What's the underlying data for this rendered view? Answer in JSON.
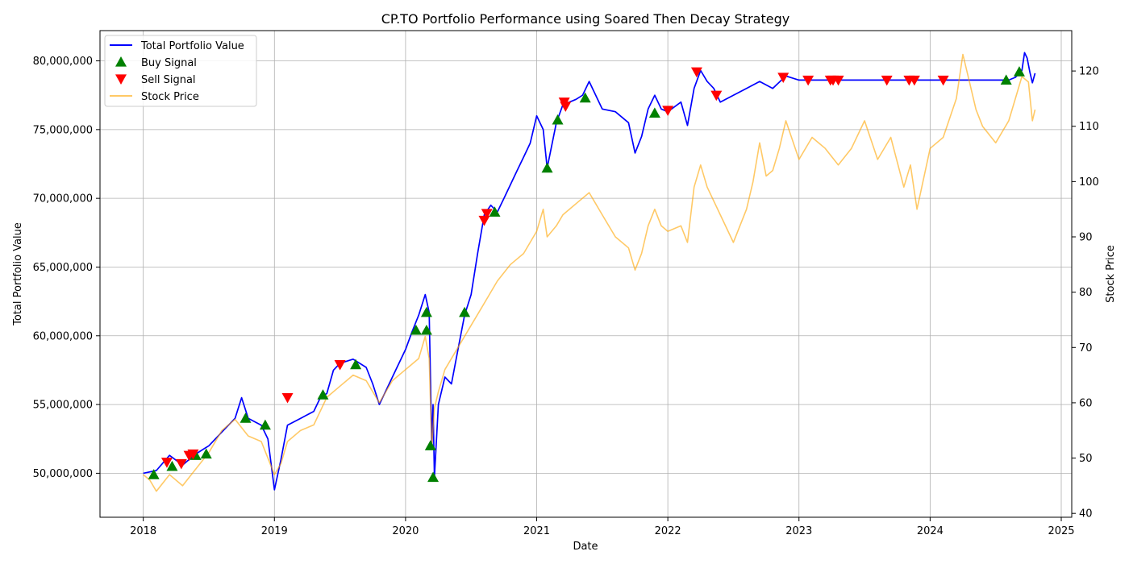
{
  "chart_data": {
    "type": "line",
    "title": "CP.TO Portfolio Performance using Soared Then Decay Strategy",
    "xlabel": "Date",
    "ylabel": "Total Portfolio Value",
    "ylabel_right": "Stock Price",
    "xlim": [
      2017.67,
      2025.08
    ],
    "ylim": [
      46800000,
      82200000
    ],
    "ylim_right": [
      39.3,
      127.3
    ],
    "x_ticks": [
      2018,
      2019,
      2020,
      2021,
      2022,
      2023,
      2024,
      2025
    ],
    "x_tick_labels": [
      "2018",
      "2019",
      "2020",
      "2021",
      "2022",
      "2023",
      "2024",
      "2025"
    ],
    "y_ticks": [
      50000000,
      55000000,
      60000000,
      65000000,
      70000000,
      75000000,
      80000000
    ],
    "y_tick_labels": [
      "50,000,000",
      "55,000,000",
      "60,000,000",
      "65,000,000",
      "70,000,000",
      "75,000,000",
      "80,000,000"
    ],
    "y_ticks_right": [
      40,
      50,
      60,
      70,
      80,
      90,
      100,
      110,
      120
    ],
    "y_tick_labels_right": [
      "40",
      "50",
      "60",
      "70",
      "80",
      "90",
      "100",
      "110",
      "120"
    ],
    "grid": true,
    "legend_position": "top-left",
    "series": [
      {
        "name": "Total Portfolio Value",
        "axis": "left",
        "color": "#0000ff",
        "points": [
          [
            2018.0,
            50000000
          ],
          [
            2018.1,
            50200000
          ],
          [
            2018.2,
            51300000
          ],
          [
            2018.3,
            50600000
          ],
          [
            2018.4,
            51400000
          ],
          [
            2018.5,
            52000000
          ],
          [
            2018.6,
            53000000
          ],
          [
            2018.7,
            54000000
          ],
          [
            2018.75,
            55500000
          ],
          [
            2018.8,
            54000000
          ],
          [
            2018.9,
            53500000
          ],
          [
            2018.95,
            52500000
          ],
          [
            2019.0,
            48800000
          ],
          [
            2019.05,
            51000000
          ],
          [
            2019.1,
            53500000
          ],
          [
            2019.2,
            54000000
          ],
          [
            2019.3,
            54500000
          ],
          [
            2019.35,
            55500000
          ],
          [
            2019.4,
            55800000
          ],
          [
            2019.45,
            57500000
          ],
          [
            2019.5,
            58000000
          ],
          [
            2019.6,
            58300000
          ],
          [
            2019.7,
            57700000
          ],
          [
            2019.75,
            56500000
          ],
          [
            2019.8,
            55000000
          ],
          [
            2019.9,
            57000000
          ],
          [
            2020.0,
            59000000
          ],
          [
            2020.05,
            60300000
          ],
          [
            2020.1,
            61500000
          ],
          [
            2020.15,
            63000000
          ],
          [
            2020.18,
            61700000
          ],
          [
            2020.2,
            52000000
          ],
          [
            2020.21,
            55000000
          ],
          [
            2020.22,
            49700000
          ],
          [
            2020.25,
            55000000
          ],
          [
            2020.3,
            57000000
          ],
          [
            2020.35,
            56500000
          ],
          [
            2020.4,
            59000000
          ],
          [
            2020.45,
            61500000
          ],
          [
            2020.5,
            63000000
          ],
          [
            2020.55,
            66000000
          ],
          [
            2020.6,
            68800000
          ],
          [
            2020.65,
            69500000
          ],
          [
            2020.7,
            69000000
          ],
          [
            2020.75,
            70000000
          ],
          [
            2020.8,
            71000000
          ],
          [
            2020.85,
            72000000
          ],
          [
            2020.9,
            73000000
          ],
          [
            2020.95,
            74000000
          ],
          [
            2021.0,
            76000000
          ],
          [
            2021.05,
            75000000
          ],
          [
            2021.08,
            72200000
          ],
          [
            2021.15,
            75500000
          ],
          [
            2021.2,
            76800000
          ],
          [
            2021.25,
            77000000
          ],
          [
            2021.3,
            77200000
          ],
          [
            2021.35,
            77500000
          ],
          [
            2021.4,
            78500000
          ],
          [
            2021.5,
            76500000
          ],
          [
            2021.6,
            76300000
          ],
          [
            2021.7,
            75500000
          ],
          [
            2021.75,
            73300000
          ],
          [
            2021.8,
            74500000
          ],
          [
            2021.85,
            76500000
          ],
          [
            2021.9,
            77500000
          ],
          [
            2021.95,
            76500000
          ],
          [
            2022.0,
            76300000
          ],
          [
            2022.1,
            77000000
          ],
          [
            2022.15,
            75300000
          ],
          [
            2022.2,
            78000000
          ],
          [
            2022.25,
            79300000
          ],
          [
            2022.3,
            78500000
          ],
          [
            2022.35,
            78000000
          ],
          [
            2022.4,
            77000000
          ],
          [
            2022.5,
            77500000
          ],
          [
            2022.6,
            78000000
          ],
          [
            2022.7,
            78500000
          ],
          [
            2022.8,
            78000000
          ],
          [
            2022.9,
            78900000
          ],
          [
            2023.0,
            78600000
          ],
          [
            2023.3,
            78600000
          ],
          [
            2023.6,
            78600000
          ],
          [
            2023.9,
            78600000
          ],
          [
            2024.2,
            78600000
          ],
          [
            2024.5,
            78600000
          ],
          [
            2024.6,
            78600000
          ],
          [
            2024.65,
            78800000
          ],
          [
            2024.7,
            79300000
          ],
          [
            2024.72,
            80600000
          ],
          [
            2024.74,
            80200000
          ],
          [
            2024.76,
            79200000
          ],
          [
            2024.78,
            78400000
          ],
          [
            2024.8,
            79100000
          ]
        ]
      },
      {
        "name": "Buy Signal",
        "axis": "left",
        "marker": "triangle-up",
        "color": "#008000",
        "points": [
          [
            2018.08,
            49900000
          ],
          [
            2018.22,
            50500000
          ],
          [
            2018.4,
            51300000
          ],
          [
            2018.48,
            51400000
          ],
          [
            2018.78,
            54000000
          ],
          [
            2018.93,
            53500000
          ],
          [
            2019.37,
            55700000
          ],
          [
            2019.62,
            57900000
          ],
          [
            2020.08,
            60400000
          ],
          [
            2020.16,
            61700000
          ],
          [
            2020.16,
            60400000
          ],
          [
            2020.19,
            52000000
          ],
          [
            2020.21,
            49700000
          ],
          [
            2020.45,
            61700000
          ],
          [
            2020.68,
            69000000
          ],
          [
            2021.08,
            72200000
          ],
          [
            2021.16,
            75700000
          ],
          [
            2021.37,
            77300000
          ],
          [
            2021.9,
            76200000
          ],
          [
            2024.58,
            78600000
          ],
          [
            2024.68,
            79200000
          ]
        ]
      },
      {
        "name": "Sell Signal",
        "axis": "left",
        "marker": "triangle-down",
        "color": "#ff0000",
        "points": [
          [
            2018.18,
            50800000
          ],
          [
            2018.29,
            50700000
          ],
          [
            2018.35,
            51300000
          ],
          [
            2018.38,
            51400000
          ],
          [
            2019.1,
            55500000
          ],
          [
            2019.5,
            57900000
          ],
          [
            2020.6,
            68400000
          ],
          [
            2020.62,
            68900000
          ],
          [
            2021.21,
            77000000
          ],
          [
            2021.22,
            76700000
          ],
          [
            2022.0,
            76400000
          ],
          [
            2022.22,
            79200000
          ],
          [
            2022.37,
            77500000
          ],
          [
            2022.88,
            78800000
          ],
          [
            2023.07,
            78600000
          ],
          [
            2023.24,
            78600000
          ],
          [
            2023.26,
            78600000
          ],
          [
            2023.3,
            78600000
          ],
          [
            2023.67,
            78600000
          ],
          [
            2023.84,
            78600000
          ],
          [
            2023.88,
            78600000
          ],
          [
            2024.1,
            78600000
          ]
        ]
      },
      {
        "name": "Stock Price",
        "axis": "right",
        "color": "#ffa500",
        "points": [
          [
            2018.0,
            47
          ],
          [
            2018.05,
            46
          ],
          [
            2018.1,
            44
          ],
          [
            2018.2,
            47
          ],
          [
            2018.3,
            45
          ],
          [
            2018.4,
            48
          ],
          [
            2018.5,
            51
          ],
          [
            2018.6,
            55
          ],
          [
            2018.7,
            57
          ],
          [
            2018.8,
            54
          ],
          [
            2018.9,
            53
          ],
          [
            2018.95,
            50
          ],
          [
            2019.0,
            47
          ],
          [
            2019.05,
            49
          ],
          [
            2019.1,
            53
          ],
          [
            2019.2,
            55
          ],
          [
            2019.3,
            56
          ],
          [
            2019.4,
            61
          ],
          [
            2019.5,
            63
          ],
          [
            2019.6,
            65
          ],
          [
            2019.7,
            64
          ],
          [
            2019.75,
            62
          ],
          [
            2019.8,
            60
          ],
          [
            2019.9,
            64
          ],
          [
            2020.0,
            66
          ],
          [
            2020.1,
            68
          ],
          [
            2020.15,
            72
          ],
          [
            2020.18,
            68
          ],
          [
            2020.2,
            52
          ],
          [
            2020.22,
            59
          ],
          [
            2020.25,
            62
          ],
          [
            2020.3,
            66
          ],
          [
            2020.4,
            70
          ],
          [
            2020.5,
            74
          ],
          [
            2020.6,
            78
          ],
          [
            2020.7,
            82
          ],
          [
            2020.8,
            85
          ],
          [
            2020.9,
            87
          ],
          [
            2021.0,
            91
          ],
          [
            2021.05,
            95
          ],
          [
            2021.08,
            90
          ],
          [
            2021.15,
            92
          ],
          [
            2021.2,
            94
          ],
          [
            2021.3,
            96
          ],
          [
            2021.4,
            98
          ],
          [
            2021.5,
            94
          ],
          [
            2021.6,
            90
          ],
          [
            2021.7,
            88
          ],
          [
            2021.75,
            84
          ],
          [
            2021.8,
            87
          ],
          [
            2021.85,
            92
          ],
          [
            2021.9,
            95
          ],
          [
            2021.95,
            92
          ],
          [
            2022.0,
            91
          ],
          [
            2022.1,
            92
          ],
          [
            2022.15,
            89
          ],
          [
            2022.2,
            99
          ],
          [
            2022.25,
            103
          ],
          [
            2022.3,
            99
          ],
          [
            2022.4,
            94
          ],
          [
            2022.5,
            89
          ],
          [
            2022.6,
            95
          ],
          [
            2022.65,
            100
          ],
          [
            2022.7,
            107
          ],
          [
            2022.75,
            101
          ],
          [
            2022.8,
            102
          ],
          [
            2022.85,
            106
          ],
          [
            2022.9,
            111
          ],
          [
            2023.0,
            104
          ],
          [
            2023.1,
            108
          ],
          [
            2023.2,
            106
          ],
          [
            2023.3,
            103
          ],
          [
            2023.4,
            106
          ],
          [
            2023.5,
            111
          ],
          [
            2023.6,
            104
          ],
          [
            2023.7,
            108
          ],
          [
            2023.8,
            99
          ],
          [
            2023.85,
            103
          ],
          [
            2023.9,
            95
          ],
          [
            2024.0,
            106
          ],
          [
            2024.1,
            108
          ],
          [
            2024.2,
            115
          ],
          [
            2024.25,
            123
          ],
          [
            2024.3,
            118
          ],
          [
            2024.35,
            113
          ],
          [
            2024.4,
            110
          ],
          [
            2024.5,
            107
          ],
          [
            2024.6,
            111
          ],
          [
            2024.65,
            115
          ],
          [
            2024.7,
            119
          ],
          [
            2024.75,
            118
          ],
          [
            2024.78,
            111
          ],
          [
            2024.8,
            113
          ]
        ]
      }
    ]
  }
}
